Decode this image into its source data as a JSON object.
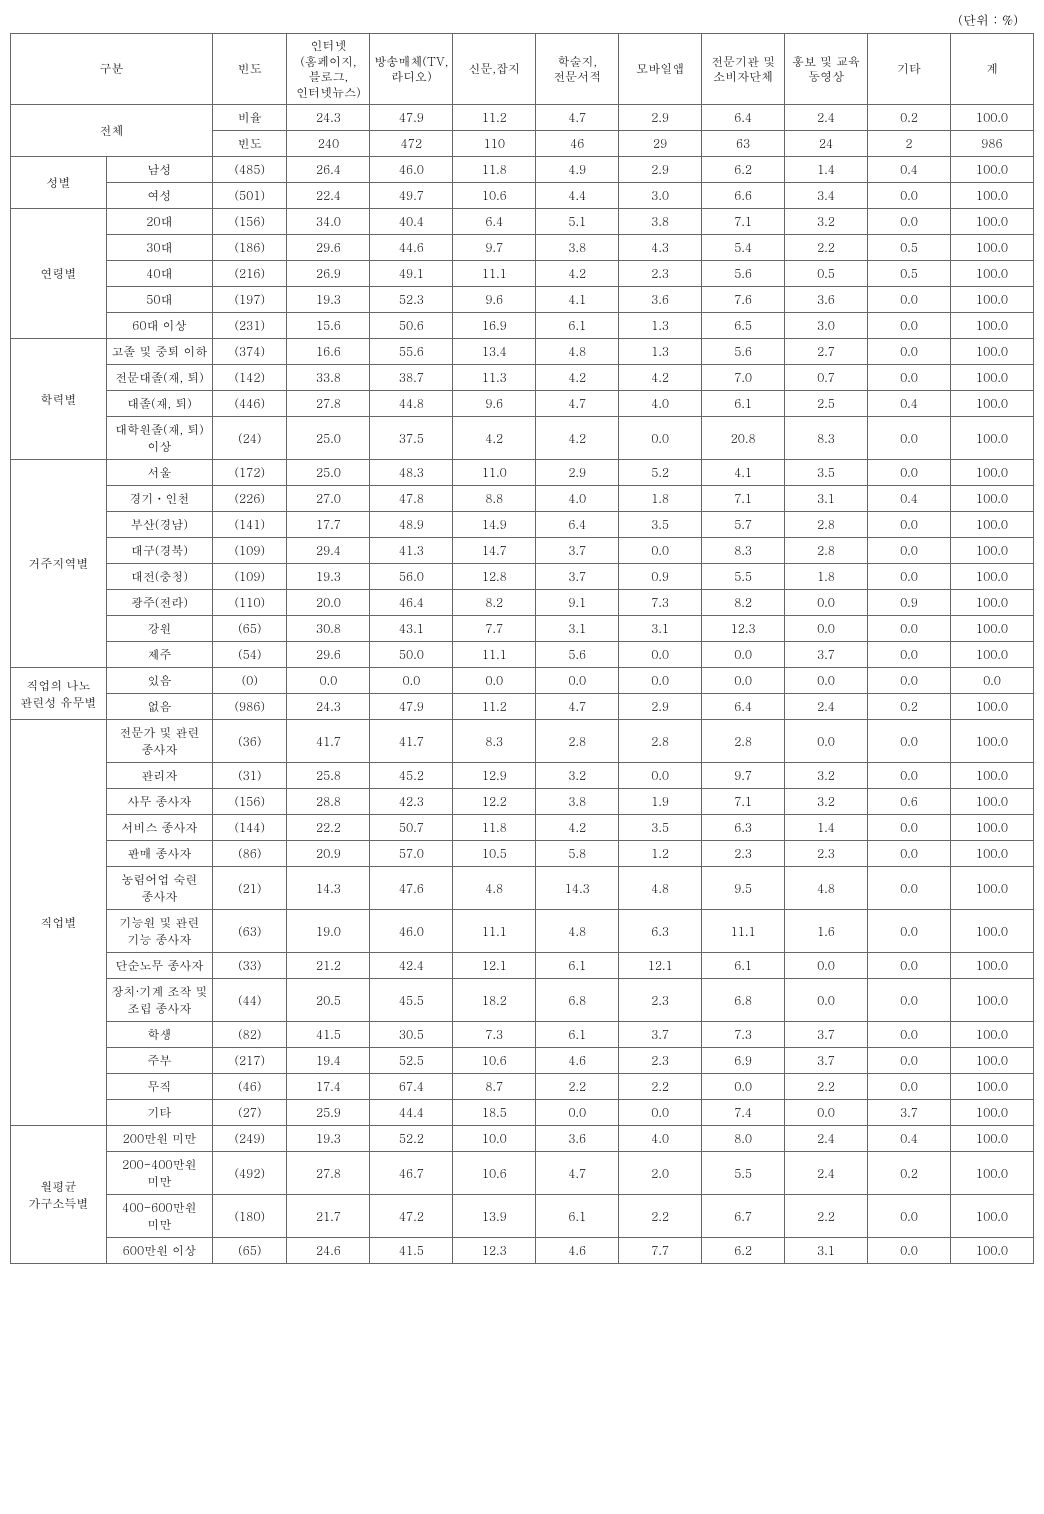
{
  "unit_label": "(단위 : %)",
  "headers": {
    "category": "구분",
    "freq": "빈도",
    "c1": "인터넷(홈페이지,블로그,인터넷뉴스)",
    "c2": "방송매체(TV,라디오)",
    "c3": "신문,잡지",
    "c4": "학술지,전문서적",
    "c5": "모바일앱",
    "c6": "전문기관 및 소비자단체",
    "c7": "홍보 및 교육 동영상",
    "c8": "기타",
    "total": "계"
  },
  "groups": [
    {
      "label": "전체",
      "spanTwoCols": true,
      "rows": [
        {
          "sub": "비율",
          "freq": "24.3",
          "v": [
            "47.9",
            "11.2",
            "4.7",
            "2.9",
            "6.4",
            "2.4",
            "0.2",
            "100.0"
          ],
          "internetIsFreq": false,
          "freqIsLabel": true
        },
        {
          "sub": "빈도",
          "freq": "240",
          "v": [
            "472",
            "110",
            "46",
            "29",
            "63",
            "24",
            "2",
            "986"
          ],
          "freqIsLabel": true
        }
      ],
      "isTotal": true
    },
    {
      "label": "성별",
      "rows": [
        {
          "sub": "남성",
          "freq": "(485)",
          "v": [
            "26.4",
            "46.0",
            "11.8",
            "4.9",
            "2.9",
            "6.2",
            "1.4",
            "0.4",
            "100.0"
          ]
        },
        {
          "sub": "여성",
          "freq": "(501)",
          "v": [
            "22.4",
            "49.7",
            "10.6",
            "4.4",
            "3.0",
            "6.6",
            "3.4",
            "0.0",
            "100.0"
          ]
        }
      ]
    },
    {
      "label": "연령별",
      "rows": [
        {
          "sub": "20대",
          "freq": "(156)",
          "v": [
            "34.0",
            "40.4",
            "6.4",
            "5.1",
            "3.8",
            "7.1",
            "3.2",
            "0.0",
            "100.0"
          ]
        },
        {
          "sub": "30대",
          "freq": "(186)",
          "v": [
            "29.6",
            "44.6",
            "9.7",
            "3.8",
            "4.3",
            "5.4",
            "2.2",
            "0.5",
            "100.0"
          ]
        },
        {
          "sub": "40대",
          "freq": "(216)",
          "v": [
            "26.9",
            "49.1",
            "11.1",
            "4.2",
            "2.3",
            "5.6",
            "0.5",
            "0.5",
            "100.0"
          ]
        },
        {
          "sub": "50대",
          "freq": "(197)",
          "v": [
            "19.3",
            "52.3",
            "9.6",
            "4.1",
            "3.6",
            "7.6",
            "3.6",
            "0.0",
            "100.0"
          ]
        },
        {
          "sub": "60대 이상",
          "freq": "(231)",
          "v": [
            "15.6",
            "50.6",
            "16.9",
            "6.1",
            "1.3",
            "6.5",
            "3.0",
            "0.0",
            "100.0"
          ]
        }
      ]
    },
    {
      "label": "학력별",
      "rows": [
        {
          "sub": "고졸 및 중퇴 이하",
          "freq": "(374)",
          "v": [
            "16.6",
            "55.6",
            "13.4",
            "4.8",
            "1.3",
            "5.6",
            "2.7",
            "0.0",
            "100.0"
          ]
        },
        {
          "sub": "전문대졸(재, 퇴)",
          "freq": "(142)",
          "v": [
            "33.8",
            "38.7",
            "11.3",
            "4.2",
            "4.2",
            "7.0",
            "0.7",
            "0.0",
            "100.0"
          ]
        },
        {
          "sub": "대졸(재, 퇴)",
          "freq": "(446)",
          "v": [
            "27.8",
            "44.8",
            "9.6",
            "4.7",
            "4.0",
            "6.1",
            "2.5",
            "0.4",
            "100.0"
          ]
        },
        {
          "sub": "대학원졸(재, 퇴) 이상",
          "freq": "(24)",
          "v": [
            "25.0",
            "37.5",
            "4.2",
            "4.2",
            "0.0",
            "20.8",
            "8.3",
            "0.0",
            "100.0"
          ]
        }
      ]
    },
    {
      "label": "거주지역별",
      "rows": [
        {
          "sub": "서울",
          "freq": "(172)",
          "v": [
            "25.0",
            "48.3",
            "11.0",
            "2.9",
            "5.2",
            "4.1",
            "3.5",
            "0.0",
            "100.0"
          ]
        },
        {
          "sub": "경기ㆍ인천",
          "freq": "(226)",
          "v": [
            "27.0",
            "47.8",
            "8.8",
            "4.0",
            "1.8",
            "7.1",
            "3.1",
            "0.4",
            "100.0"
          ]
        },
        {
          "sub": "부산(경남)",
          "freq": "(141)",
          "v": [
            "17.7",
            "48.9",
            "14.9",
            "6.4",
            "3.5",
            "5.7",
            "2.8",
            "0.0",
            "100.0"
          ]
        },
        {
          "sub": "대구(경북)",
          "freq": "(109)",
          "v": [
            "29.4",
            "41.3",
            "14.7",
            "3.7",
            "0.0",
            "8.3",
            "2.8",
            "0.0",
            "100.0"
          ]
        },
        {
          "sub": "대전(충청)",
          "freq": "(109)",
          "v": [
            "19.3",
            "56.0",
            "12.8",
            "3.7",
            "0.9",
            "5.5",
            "1.8",
            "0.0",
            "100.0"
          ]
        },
        {
          "sub": "광주(전라)",
          "freq": "(110)",
          "v": [
            "20.0",
            "46.4",
            "8.2",
            "9.1",
            "7.3",
            "8.2",
            "0.0",
            "0.9",
            "100.0"
          ]
        },
        {
          "sub": "강원",
          "freq": "(65)",
          "v": [
            "30.8",
            "43.1",
            "7.7",
            "3.1",
            "3.1",
            "12.3",
            "0.0",
            "0.0",
            "100.0"
          ]
        },
        {
          "sub": "제주",
          "freq": "(54)",
          "v": [
            "29.6",
            "50.0",
            "11.1",
            "5.6",
            "0.0",
            "0.0",
            "3.7",
            "0.0",
            "100.0"
          ]
        }
      ]
    },
    {
      "label": "직업의 나노 관련성 유무별",
      "rows": [
        {
          "sub": "있음",
          "freq": "(0)",
          "v": [
            "0.0",
            "0.0",
            "0.0",
            "0.0",
            "0.0",
            "0.0",
            "0.0",
            "0.0",
            "0.0"
          ]
        },
        {
          "sub": "없음",
          "freq": "(986)",
          "v": [
            "24.3",
            "47.9",
            "11.2",
            "4.7",
            "2.9",
            "6.4",
            "2.4",
            "0.2",
            "100.0"
          ]
        }
      ]
    },
    {
      "label": "직업별",
      "rows": [
        {
          "sub": "전문가 및 관련 종사자",
          "freq": "(36)",
          "v": [
            "41.7",
            "41.7",
            "8.3",
            "2.8",
            "2.8",
            "2.8",
            "0.0",
            "0.0",
            "100.0"
          ]
        },
        {
          "sub": "관리자",
          "freq": "(31)",
          "v": [
            "25.8",
            "45.2",
            "12.9",
            "3.2",
            "0.0",
            "9.7",
            "3.2",
            "0.0",
            "100.0"
          ]
        },
        {
          "sub": "사무 종사자",
          "freq": "(156)",
          "v": [
            "28.8",
            "42.3",
            "12.2",
            "3.8",
            "1.9",
            "7.1",
            "3.2",
            "0.6",
            "100.0"
          ]
        },
        {
          "sub": "서비스 종사자",
          "freq": "(144)",
          "v": [
            "22.2",
            "50.7",
            "11.8",
            "4.2",
            "3.5",
            "6.3",
            "1.4",
            "0.0",
            "100.0"
          ]
        },
        {
          "sub": "판매 종사자",
          "freq": "(86)",
          "v": [
            "20.9",
            "57.0",
            "10.5",
            "5.8",
            "1.2",
            "2.3",
            "2.3",
            "0.0",
            "100.0"
          ]
        },
        {
          "sub": "농림어업 숙련 종사자",
          "freq": "(21)",
          "v": [
            "14.3",
            "47.6",
            "4.8",
            "14.3",
            "4.8",
            "9.5",
            "4.8",
            "0.0",
            "100.0"
          ]
        },
        {
          "sub": "기능원 및 관련 기능 종사자",
          "freq": "(63)",
          "v": [
            "19.0",
            "46.0",
            "11.1",
            "4.8",
            "6.3",
            "11.1",
            "1.6",
            "0.0",
            "100.0"
          ]
        },
        {
          "sub": "단순노무 종사자",
          "freq": "(33)",
          "v": [
            "21.2",
            "42.4",
            "12.1",
            "6.1",
            "12.1",
            "6.1",
            "0.0",
            "0.0",
            "100.0"
          ]
        },
        {
          "sub": "장치·기계 조작 및 조립 종사자",
          "freq": "(44)",
          "v": [
            "20.5",
            "45.5",
            "18.2",
            "6.8",
            "2.3",
            "6.8",
            "0.0",
            "0.0",
            "100.0"
          ]
        },
        {
          "sub": "학생",
          "freq": "(82)",
          "v": [
            "41.5",
            "30.5",
            "7.3",
            "6.1",
            "3.7",
            "7.3",
            "3.7",
            "0.0",
            "100.0"
          ]
        },
        {
          "sub": "주부",
          "freq": "(217)",
          "v": [
            "19.4",
            "52.5",
            "10.6",
            "4.6",
            "2.3",
            "6.9",
            "3.7",
            "0.0",
            "100.0"
          ]
        },
        {
          "sub": "무직",
          "freq": "(46)",
          "v": [
            "17.4",
            "67.4",
            "8.7",
            "2.2",
            "2.2",
            "0.0",
            "2.2",
            "0.0",
            "100.0"
          ]
        },
        {
          "sub": "기타",
          "freq": "(27)",
          "v": [
            "25.9",
            "44.4",
            "18.5",
            "0.0",
            "0.0",
            "7.4",
            "0.0",
            "3.7",
            "100.0"
          ]
        }
      ]
    },
    {
      "label": "월평균 가구소득별",
      "rows": [
        {
          "sub": "200만원 미만",
          "freq": "(249)",
          "v": [
            "19.3",
            "52.2",
            "10.0",
            "3.6",
            "4.0",
            "8.0",
            "2.4",
            "0.4",
            "100.0"
          ]
        },
        {
          "sub": "200-400만원 미만",
          "freq": "(492)",
          "v": [
            "27.8",
            "46.7",
            "10.6",
            "4.7",
            "2.0",
            "5.5",
            "2.4",
            "0.2",
            "100.0"
          ]
        },
        {
          "sub": "400-600만원 미만",
          "freq": "(180)",
          "v": [
            "21.7",
            "47.2",
            "13.9",
            "6.1",
            "2.2",
            "6.7",
            "2.2",
            "0.0",
            "100.0"
          ]
        },
        {
          "sub": "600만원 이상",
          "freq": "(65)",
          "v": [
            "24.6",
            "41.5",
            "12.3",
            "4.6",
            "7.7",
            "6.2",
            "3.1",
            "0.0",
            "100.0"
          ]
        }
      ]
    }
  ]
}
